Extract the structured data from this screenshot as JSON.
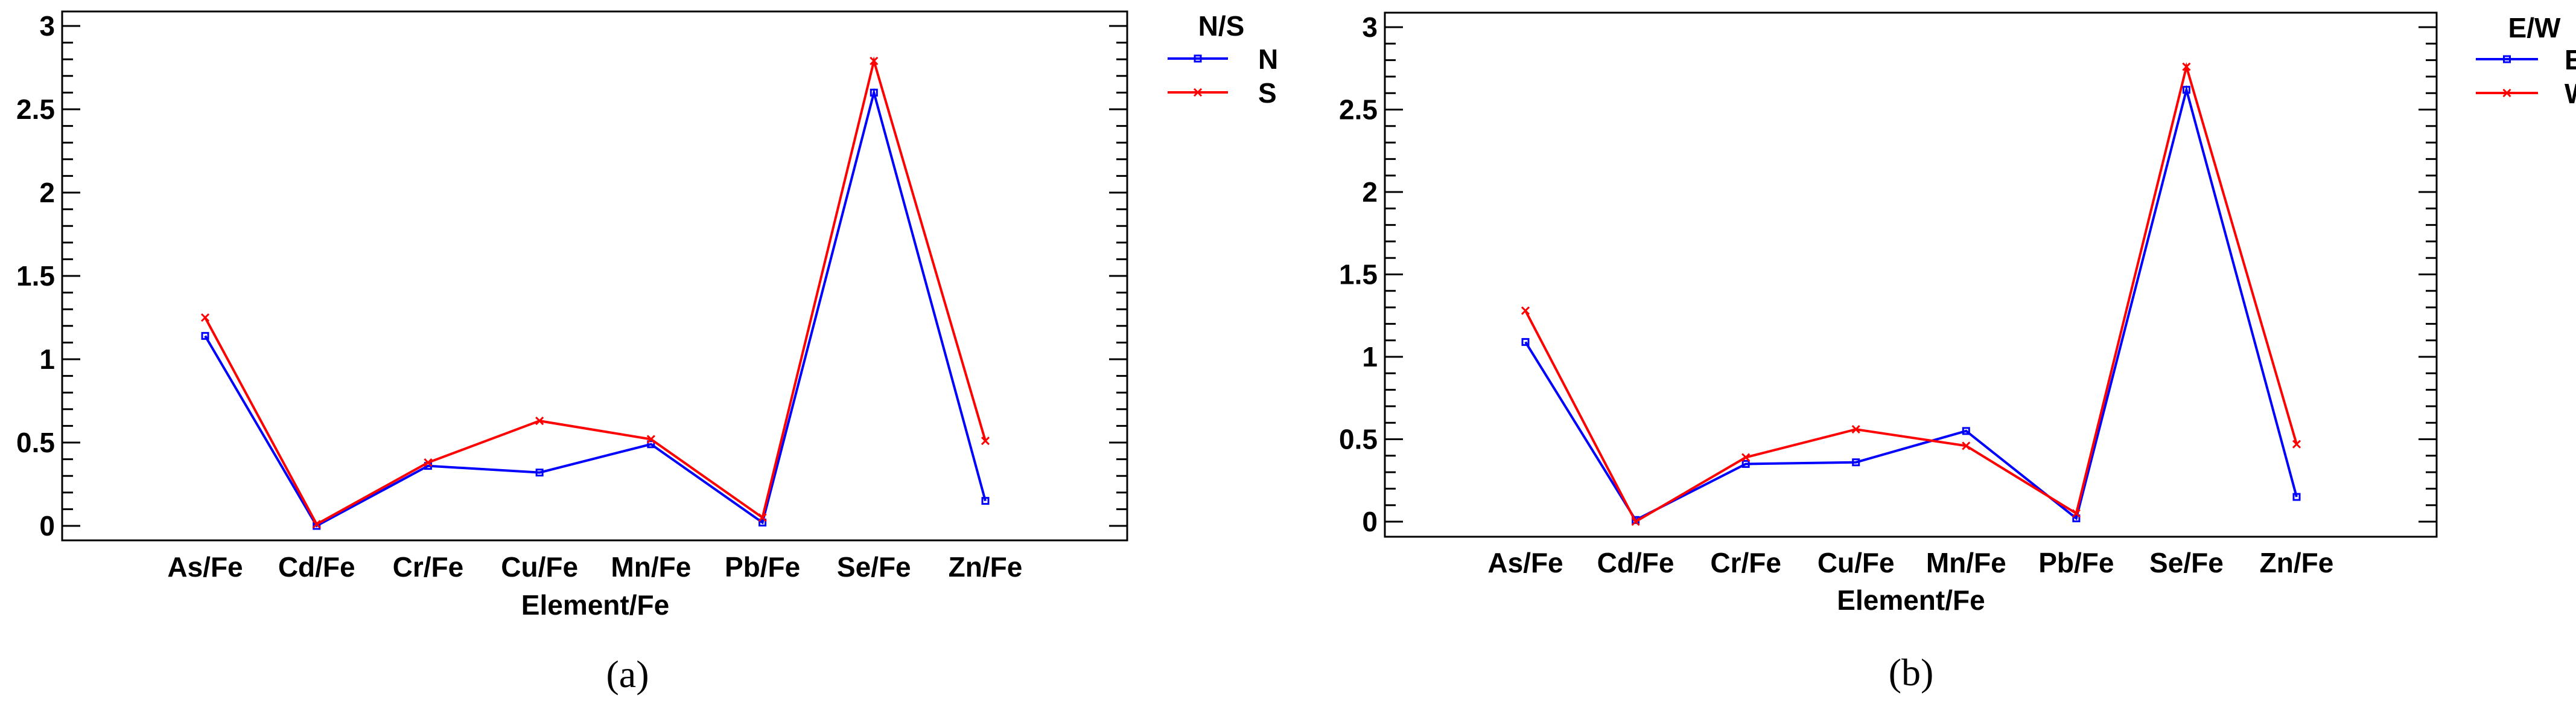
{
  "chart_data": [
    {
      "type": "line",
      "caption": "(a)",
      "xlabel": "Element/Fe",
      "ylabel": "",
      "categories": [
        "As/Fe",
        "Cd/Fe",
        "Cr/Fe",
        "Cu/Fe",
        "Mn/Fe",
        "Pb/Fe",
        "Se/Fe",
        "Zn/Fe"
      ],
      "ylim": [
        0,
        3
      ],
      "yticks": [
        "0",
        "0.5",
        "1",
        "1.5",
        "2",
        "2.5",
        "3"
      ],
      "legend_title": "N/S",
      "legend_position": "outside-top-right",
      "series": [
        {
          "name": "N",
          "color": "#0000ff",
          "marker": "square",
          "values": [
            1.14,
            0.0,
            0.36,
            0.32,
            0.49,
            0.02,
            2.6,
            0.15
          ]
        },
        {
          "name": "S",
          "color": "#ff0000",
          "marker": "x",
          "values": [
            1.25,
            0.01,
            0.38,
            0.63,
            0.52,
            0.05,
            2.79,
            0.51
          ]
        }
      ]
    },
    {
      "type": "line",
      "caption": "(b)",
      "xlabel": "Element/Fe",
      "ylabel": "",
      "categories": [
        "As/Fe",
        "Cd/Fe",
        "Cr/Fe",
        "Cu/Fe",
        "Mn/Fe",
        "Pb/Fe",
        "Se/Fe",
        "Zn/Fe"
      ],
      "ylim": [
        0,
        3
      ],
      "yticks": [
        "0",
        "0.5",
        "1",
        "1.5",
        "2",
        "2.5",
        "3"
      ],
      "legend_title": "E/W",
      "legend_position": "outside-top-right",
      "series": [
        {
          "name": "E",
          "color": "#0000ff",
          "marker": "square",
          "values": [
            1.09,
            0.01,
            0.35,
            0.36,
            0.55,
            0.02,
            2.62,
            0.15
          ]
        },
        {
          "name": "W",
          "color": "#ff0000",
          "marker": "x",
          "values": [
            1.28,
            0.0,
            0.39,
            0.56,
            0.46,
            0.05,
            2.76,
            0.47
          ]
        }
      ]
    }
  ]
}
